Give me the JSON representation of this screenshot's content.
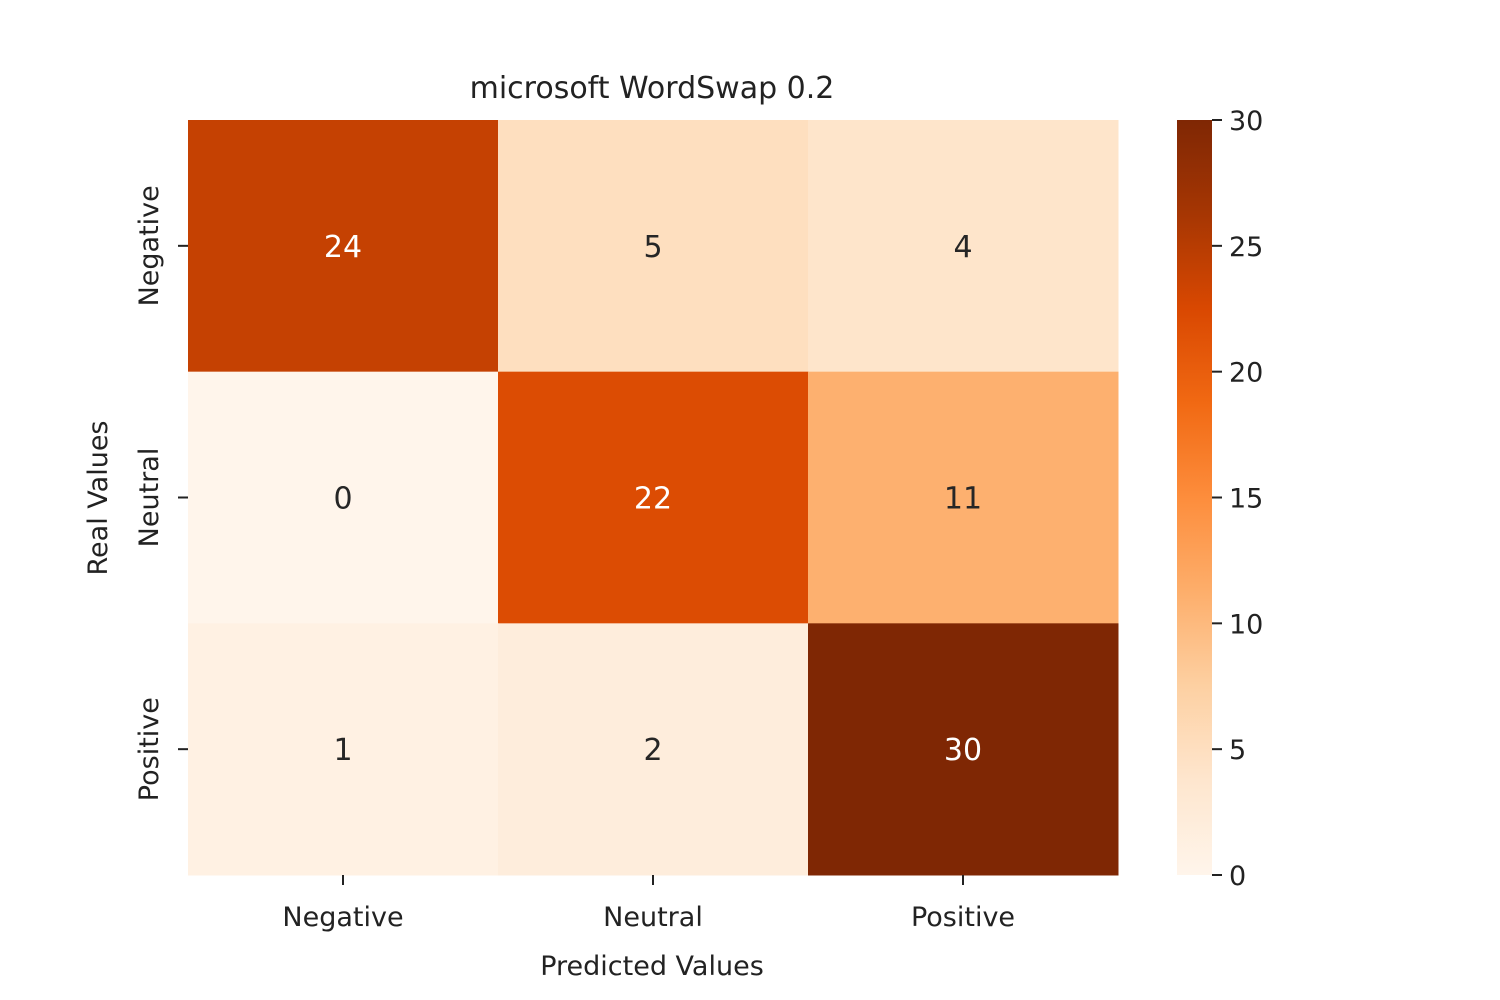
{
  "chart_data": {
    "type": "heatmap",
    "title": "microsoft WordSwap 0.2",
    "xlabel": "Predicted Values",
    "ylabel": "Real Values",
    "x_categories": [
      "Negative",
      "Neutral",
      "Positive"
    ],
    "y_categories": [
      "Negative",
      "Neutral",
      "Positive"
    ],
    "values": [
      [
        24,
        5,
        4
      ],
      [
        0,
        22,
        11
      ],
      [
        1,
        2,
        30
      ]
    ],
    "colorbar": {
      "range": [
        0,
        30
      ],
      "ticks": [
        0,
        5,
        10,
        15,
        20,
        25,
        30
      ],
      "colormap": "Oranges",
      "colors": [
        "#fff5eb",
        "#fee6ce",
        "#fdd0a2",
        "#fdae6b",
        "#fd8d3c",
        "#f16913",
        "#d94801",
        "#a63603",
        "#7f2704"
      ]
    },
    "grid": false
  }
}
